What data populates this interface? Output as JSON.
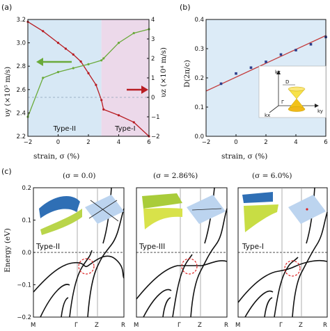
{
  "panel_labels": [
    "(a)",
    "(b)",
    "(c)"
  ],
  "chart_data": [
    {
      "id": "a",
      "type": "line",
      "xlabel": "strain, σ (%)",
      "ylabel_left": "υy (×10⁵ m/s)",
      "ylabel_right": "υz (×10⁴ m/s)",
      "xlim": [
        -2,
        6
      ],
      "ylim_left": [
        2.2,
        3.2
      ],
      "ylim_right": [
        -2,
        4
      ],
      "x_ticks": [
        "−2",
        "0",
        "2",
        "4",
        "6"
      ],
      "y_ticks_left": [
        "2.2",
        "2.4",
        "2.6",
        "2.8",
        "3.0",
        "3.2"
      ],
      "y_ticks_right": [
        "−2",
        "−1",
        "0",
        "1",
        "2",
        "3",
        "4"
      ],
      "regions": [
        {
          "name": "Type-II",
          "x": [
            -2,
            2.86
          ],
          "color": "#d7e8f5"
        },
        {
          "name": "Type-I",
          "x": [
            2.86,
            6
          ],
          "color": "#ecd9ea"
        }
      ],
      "series": [
        {
          "axis": "left",
          "color": "#b81c22",
          "x": [
            -2,
            -1,
            0,
            0.5,
            1,
            1.5,
            2,
            2.5,
            2.86,
            3,
            4,
            5,
            6
          ],
          "y": [
            3.18,
            3.1,
            3.0,
            2.95,
            2.9,
            2.84,
            2.74,
            2.64,
            2.51,
            2.43,
            2.38,
            2.32,
            2.2
          ]
        },
        {
          "axis": "right",
          "color": "#6aaa3a",
          "x": [
            -2,
            -1,
            0,
            1,
            2,
            2.86,
            3,
            4,
            5,
            6
          ],
          "y": [
            -1.0,
            1.0,
            1.3,
            1.5,
            1.7,
            1.9,
            2.0,
            2.8,
            3.3,
            3.5
          ]
        }
      ],
      "zero_line_right": 0
    },
    {
      "id": "b",
      "type": "scatter",
      "xlabel": "strain, σ (%)",
      "ylabel": "D(2π/c)",
      "xlim": [
        -2,
        6
      ],
      "ylim": [
        0.0,
        0.4
      ],
      "x_ticks": [
        "−2",
        "0",
        "2",
        "4",
        "6"
      ],
      "y_ticks": [
        "0.0",
        "0.1",
        "0.2",
        "0.3",
        "0.4"
      ],
      "x": [
        -1,
        0,
        1,
        2,
        3,
        4,
        5,
        6
      ],
      "y": [
        0.18,
        0.215,
        0.235,
        0.255,
        0.28,
        0.295,
        0.315,
        0.34
      ],
      "fit": {
        "x": [
          -2,
          6
        ],
        "y": [
          0.155,
          0.345
        ],
        "color": "#c43d3d"
      },
      "background": "#dcebf7",
      "inset_labels": {
        "kz": "kz",
        "ky": "ky",
        "kx": "kx",
        "D": "D",
        "gamma": "Γ"
      }
    },
    {
      "id": "c",
      "type": "line",
      "ylabel": "Energy (eV)",
      "ylim": [
        -0.2,
        0.2
      ],
      "y_ticks": [
        "0.2",
        "0.1",
        "0.0",
        "−0.1",
        "−0.2"
      ],
      "subpanels": [
        {
          "title": "(σ = 0.0)",
          "type_label": "Type-II",
          "k_labels": [
            "M",
            "Γ",
            "Z",
            "R"
          ]
        },
        {
          "title": "(σ = 2.86%)",
          "type_label": "Type-III",
          "k_labels": [
            "M",
            "Γ",
            "Z",
            "R"
          ]
        },
        {
          "title": "(σ = 6.0%)",
          "type_label": "Type-I",
          "k_labels": [
            "M",
            "Γ",
            "Z",
            "R"
          ]
        }
      ]
    }
  ]
}
